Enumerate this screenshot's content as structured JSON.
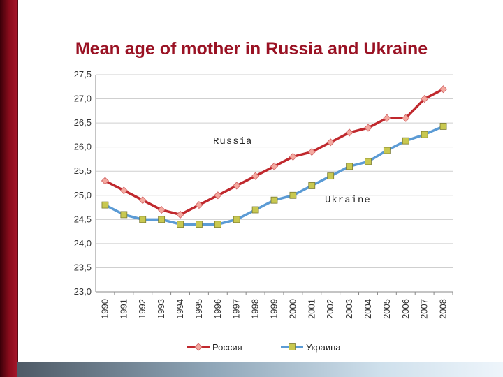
{
  "slide": {
    "title": "Mean age of mother in Russia and Ukraine"
  },
  "chart_data": {
    "type": "line",
    "title": "Mean age of mother in Russia and Ukraine",
    "categories": [
      "1990",
      "1991",
      "1992",
      "1993",
      "1994",
      "1995",
      "1996",
      "1997",
      "1998",
      "1999",
      "2000",
      "2001",
      "2002",
      "2003",
      "2004",
      "2005",
      "2006",
      "2007",
      "2008"
    ],
    "y_ticks": [
      "23,0",
      "23,5",
      "24,0",
      "24,5",
      "25,0",
      "25,5",
      "26,0",
      "26,5",
      "27,0",
      "27,5"
    ],
    "ylim": [
      23.0,
      27.5
    ],
    "grid": true,
    "legend_position": "bottom",
    "series": [
      {
        "name": "Россия",
        "annotation": "Russia",
        "color": "#c0282d",
        "marker": "diamond",
        "marker_color": "#f4a9a0",
        "values": [
          25.3,
          25.1,
          24.9,
          24.7,
          24.6,
          24.8,
          25.0,
          25.2,
          25.4,
          25.6,
          25.8,
          25.9,
          26.1,
          26.3,
          26.4,
          26.6,
          26.6,
          27.0,
          27.2
        ]
      },
      {
        "name": "Украина",
        "annotation": "Ukraine",
        "color": "#5b9bd5",
        "marker": "square",
        "marker_color": "#c8c850",
        "values": [
          24.8,
          24.6,
          24.5,
          24.5,
          24.4,
          24.4,
          24.4,
          24.5,
          24.7,
          24.9,
          25.0,
          25.2,
          25.4,
          25.6,
          25.7,
          25.93,
          26.13,
          26.26,
          26.43
        ]
      }
    ]
  }
}
